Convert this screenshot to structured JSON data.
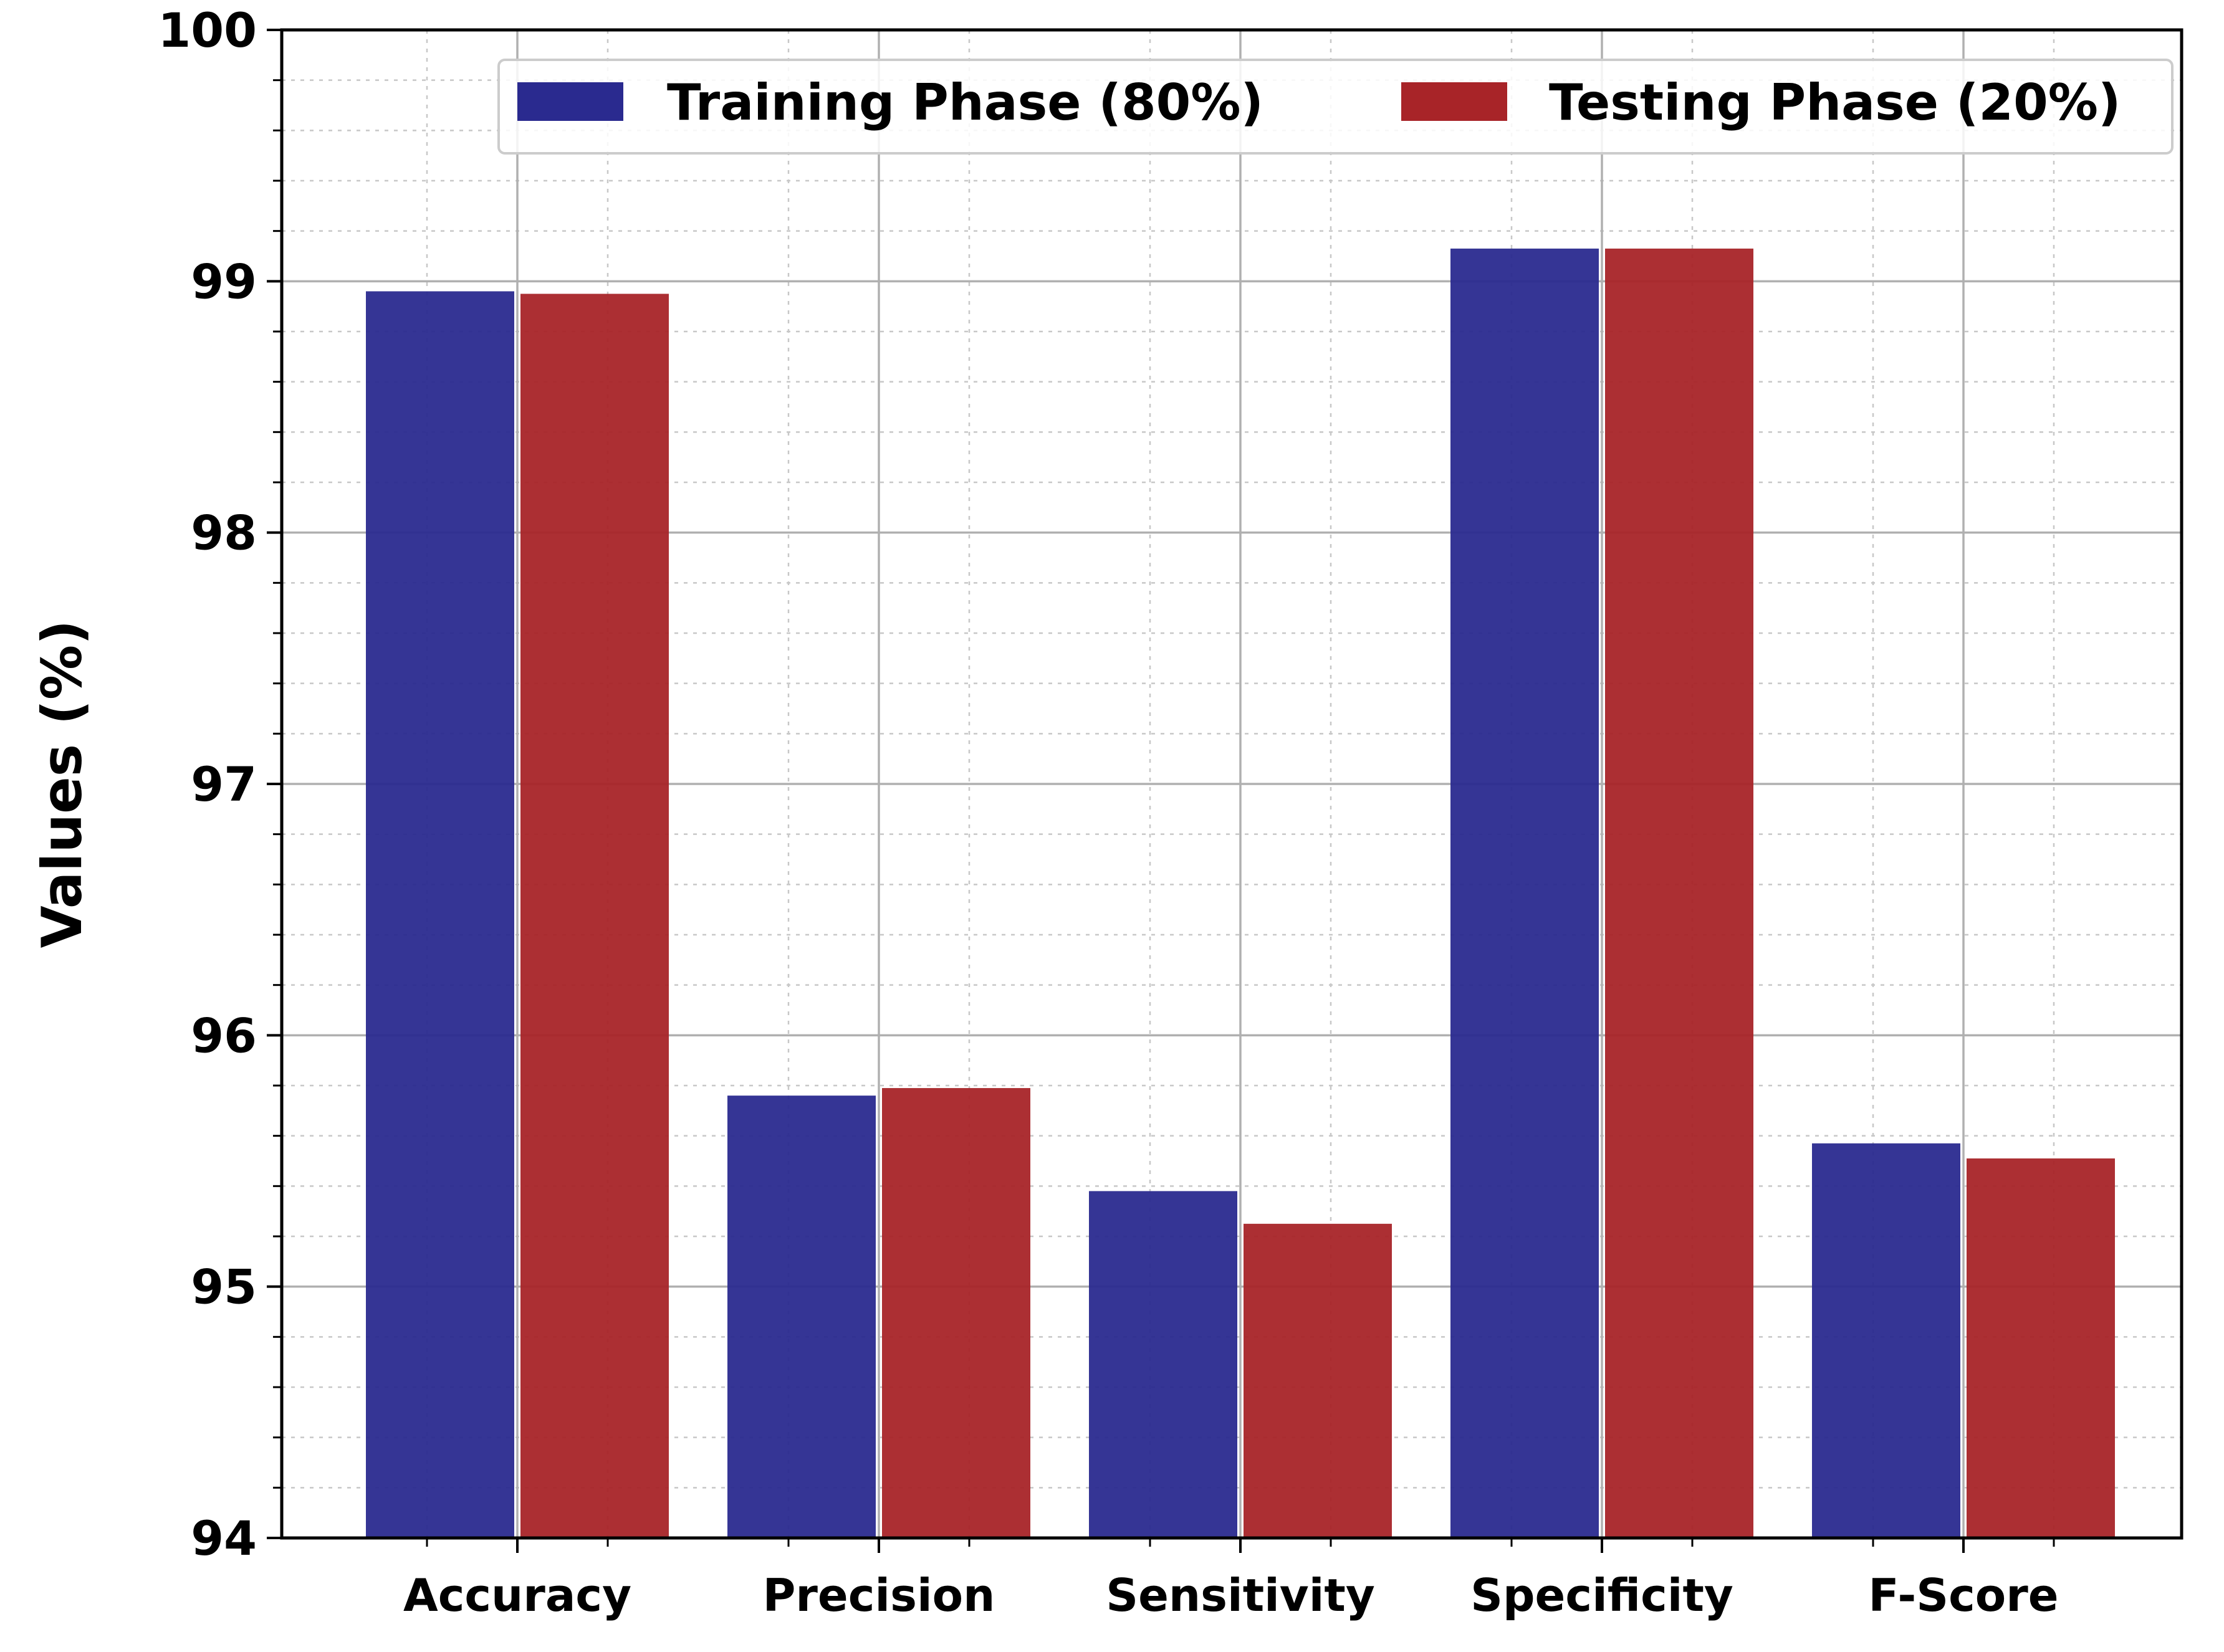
{
  "chart_data": {
    "type": "bar",
    "title": "",
    "xlabel": "",
    "ylabel": "Values (%)",
    "ylim": [
      94,
      100
    ],
    "yticks": [
      "94",
      "95",
      "96",
      "97",
      "98",
      "99",
      "100"
    ],
    "grid": true,
    "legend_position": "top-right",
    "categories": [
      "Accuracy",
      "Precision",
      "Sensitivity",
      "Specificity",
      "F-Score"
    ],
    "series": [
      {
        "name": "Training Phase (80%)",
        "color": "#2a2a8f",
        "values": [
          98.96,
          95.76,
          95.38,
          99.13,
          95.57
        ]
      },
      {
        "name": "Testing Phase (20%)",
        "color": "#a82428",
        "values": [
          98.95,
          95.79,
          95.25,
          99.13,
          95.51
        ]
      }
    ]
  }
}
